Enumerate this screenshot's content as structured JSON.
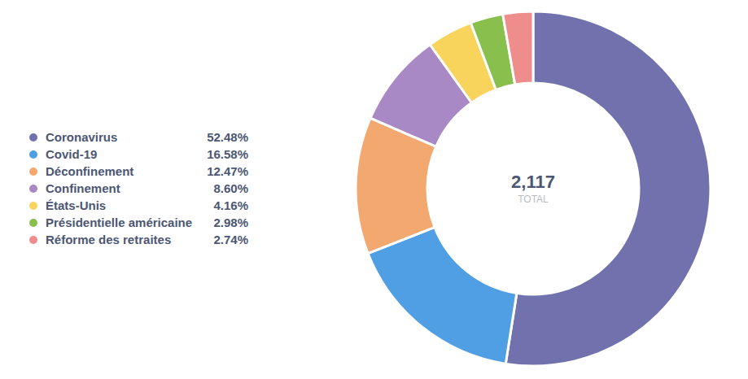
{
  "chart_data": {
    "type": "pie",
    "categories": [
      "Coronavirus",
      "Covid-19",
      "Déconfinement",
      "Confinement",
      "États-Unis",
      "Présidentielle américaine",
      "Réforme des retraites"
    ],
    "values": [
      52.48,
      16.58,
      12.47,
      8.6,
      4.16,
      2.98,
      2.74
    ],
    "value_labels": [
      "52.48%",
      "16.58%",
      "12.47%",
      "8.60%",
      "4.16%",
      "2.98%",
      "2.74%"
    ],
    "colors": [
      "#7172ad",
      "#509ee3",
      "#f2a86f",
      "#a989c5",
      "#f9d45c",
      "#88bf4d",
      "#ef8c8c"
    ],
    "total": {
      "value": 2117,
      "label": "2,117"
    },
    "total_text": "TOTAL",
    "legend": "left"
  }
}
